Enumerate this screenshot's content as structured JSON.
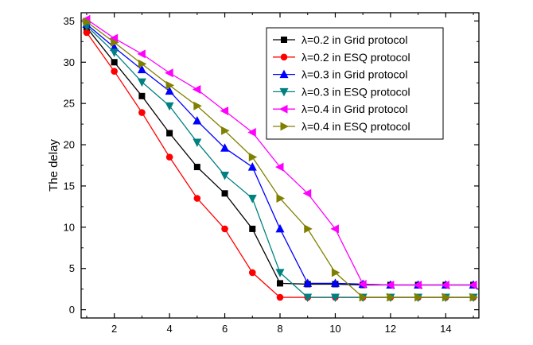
{
  "chart_data": {
    "type": "line",
    "title": "",
    "xlabel": "",
    "ylabel": "The delay",
    "xlim": [
      0.8,
      15.2
    ],
    "ylim": [
      -1,
      36
    ],
    "xticks": [
      2,
      4,
      6,
      8,
      10,
      12,
      14
    ],
    "yticks": [
      0,
      5,
      10,
      15,
      20,
      25,
      30,
      35
    ],
    "legend_position": "top-right",
    "series": [
      {
        "name": "λ=0.2 in Grid protocol",
        "color": "#000000",
        "marker": "square",
        "x": [
          1,
          2,
          3,
          4,
          5,
          6,
          7,
          8,
          9,
          10,
          11,
          12,
          13,
          14,
          15
        ],
        "y": [
          34.2,
          30.0,
          25.9,
          21.4,
          17.3,
          14.1,
          9.8,
          3.2,
          3.1,
          3.1,
          3.0,
          3.0,
          3.0,
          3.0,
          3.0
        ]
      },
      {
        "name": "λ=0.2 in ESQ protocol",
        "color": "#ff0000",
        "marker": "circle",
        "x": [
          1,
          2,
          3,
          4,
          5,
          6,
          7,
          8,
          9,
          10,
          11,
          12,
          13,
          14,
          15
        ],
        "y": [
          33.6,
          28.9,
          23.9,
          18.5,
          13.5,
          9.8,
          4.5,
          1.5,
          1.5,
          1.5,
          1.5,
          1.5,
          1.5,
          1.5,
          1.5
        ]
      },
      {
        "name": "λ=0.3 in Grid protocol",
        "color": "#0000ff",
        "marker": "triangle-up",
        "x": [
          1,
          2,
          3,
          4,
          5,
          6,
          7,
          8,
          9,
          10,
          11,
          12,
          13,
          14,
          15
        ],
        "y": [
          34.6,
          31.8,
          29.1,
          26.5,
          22.9,
          19.6,
          17.3,
          9.8,
          3.2,
          3.2,
          3.1,
          3.0,
          3.0,
          3.0,
          3.0
        ]
      },
      {
        "name": "λ=0.3 in ESQ protocol",
        "color": "#008080",
        "marker": "triangle-down",
        "x": [
          1,
          2,
          3,
          4,
          5,
          6,
          7,
          8,
          9,
          10,
          11,
          12,
          13,
          14,
          15
        ],
        "y": [
          34.4,
          31.2,
          27.6,
          24.7,
          20.3,
          16.3,
          13.5,
          4.5,
          1.5,
          1.5,
          1.5,
          1.5,
          1.5,
          1.5,
          1.5
        ]
      },
      {
        "name": "λ=0.4 in Grid protocol",
        "color": "#ff00ff",
        "marker": "triangle-left",
        "x": [
          1,
          2,
          3,
          4,
          5,
          6,
          7,
          8,
          9,
          10,
          11,
          12,
          13,
          14,
          15
        ],
        "y": [
          35.2,
          32.9,
          31.0,
          28.7,
          26.7,
          24.1,
          21.5,
          17.3,
          14.1,
          9.8,
          3.1,
          3.0,
          3.0,
          3.0,
          3.0
        ]
      },
      {
        "name": "λ=0.4 in ESQ protocol",
        "color": "#808000",
        "marker": "triangle-right",
        "x": [
          1,
          2,
          3,
          4,
          5,
          6,
          7,
          8,
          9,
          10,
          11,
          12,
          13,
          14,
          15
        ],
        "y": [
          34.9,
          32.4,
          29.8,
          27.2,
          24.7,
          21.7,
          18.5,
          13.5,
          9.8,
          4.5,
          1.5,
          1.5,
          1.5,
          1.5,
          1.5
        ]
      }
    ]
  }
}
